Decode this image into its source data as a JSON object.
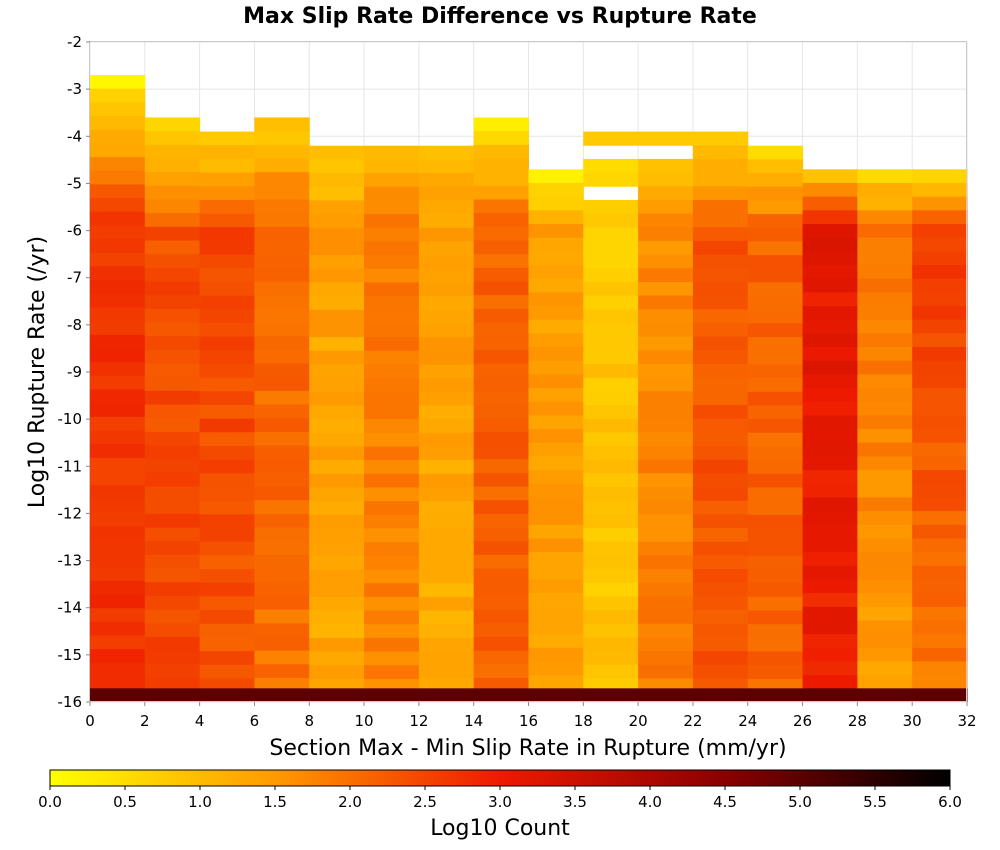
{
  "chart_data": {
    "type": "heatmap",
    "title": "Max Slip Rate Difference vs Rupture Rate",
    "xlabel": "Section Max - Min Slip Rate in Rupture (mm/yr)",
    "ylabel": "Log10 Rupture Rate (/yr)",
    "xlim": [
      0,
      32
    ],
    "ylim": [
      -16,
      -2
    ],
    "x_ticks": [
      "0",
      "2",
      "4",
      "6",
      "8",
      "10",
      "12",
      "14",
      "16",
      "18",
      "20",
      "22",
      "24",
      "26",
      "28",
      "30",
      "32"
    ],
    "y_ticks": [
      "-2",
      "-3",
      "-4",
      "-5",
      "-6",
      "-7",
      "-8",
      "-9",
      "-10",
      "-11",
      "-12",
      "-13",
      "-14",
      "-15",
      "-16"
    ],
    "grid": true,
    "colorbar": {
      "label": "Log10 Count",
      "range": [
        0,
        6
      ],
      "ticks": [
        "0.0",
        "0.5",
        "1.0",
        "1.5",
        "2.0",
        "2.5",
        "3.0",
        "3.5",
        "4.0",
        "4.5",
        "5.0",
        "5.5",
        "6.0"
      ],
      "colors": [
        "#ffff00",
        "#ff9a00",
        "#ee1a00",
        "#8a0000",
        "#000000"
      ],
      "stops": [
        0,
        1.5,
        3.0,
        4.5,
        6.0
      ]
    },
    "x_bins": [
      [
        0,
        2
      ],
      [
        2,
        4
      ],
      [
        4,
        6
      ],
      [
        6,
        8
      ],
      [
        8,
        10
      ],
      [
        10,
        12
      ],
      [
        12,
        14
      ],
      [
        14,
        16
      ],
      [
        16,
        18
      ],
      [
        18,
        20
      ],
      [
        20,
        22
      ],
      [
        22,
        24
      ],
      [
        24,
        26
      ],
      [
        26,
        28
      ],
      [
        28,
        30
      ],
      [
        30,
        32
      ]
    ],
    "columns": [
      {
        "x": [
          0,
          2
        ],
        "top": -2.7,
        "top_value": 0.2,
        "high_value": 2.75,
        "low_value": 2.7,
        "bottom_value": 5.0
      },
      {
        "x": [
          2,
          4
        ],
        "top": -3.6,
        "top_value": 0.3,
        "high_value": 2.4,
        "low_value": 2.45,
        "bottom_value": 5.0
      },
      {
        "x": [
          4,
          6
        ],
        "top": -3.9,
        "top_value": 0.5,
        "high_value": 2.55,
        "low_value": 2.3,
        "bottom_value": 5.0
      },
      {
        "x": [
          6,
          8
        ],
        "top": -3.6,
        "top_value": 0.8,
        "high_value": 2.1,
        "low_value": 2.0,
        "bottom_value": 5.0
      },
      {
        "x": [
          8,
          10
        ],
        "top": -4.2,
        "top_value": 0.9,
        "high_value": 1.4,
        "low_value": 1.3,
        "bottom_value": 5.0
      },
      {
        "x": [
          10,
          12
        ],
        "top": -4.2,
        "top_value": 1.0,
        "high_value": 1.9,
        "low_value": 1.75,
        "bottom_value": 5.0
      },
      {
        "x": [
          12,
          14
        ],
        "top": -4.2,
        "top_value": 1.0,
        "high_value": 1.5,
        "low_value": 1.2,
        "bottom_value": 5.0
      },
      {
        "x": [
          14,
          16
        ],
        "top": -3.6,
        "top_value": 0.3,
        "high_value": 2.15,
        "low_value": 2.2,
        "bottom_value": 5.0
      },
      {
        "x": [
          16,
          18
        ],
        "top": -4.7,
        "top_value": 0.3,
        "high_value": 1.4,
        "low_value": 1.45,
        "bottom_value": 5.0
      },
      {
        "x": [
          18,
          20
        ],
        "top": -3.9,
        "top_value": 0.6,
        "high_value": 0.8,
        "low_value": 0.9,
        "bottom_value": 5.0
      },
      {
        "x": [
          20,
          22
        ],
        "top": -3.9,
        "top_value": 0.6,
        "high_value": 1.7,
        "low_value": 1.8,
        "bottom_value": 5.0
      },
      {
        "x": [
          22,
          24
        ],
        "top": -3.9,
        "top_value": 0.6,
        "high_value": 2.3,
        "low_value": 2.35,
        "bottom_value": 5.0
      },
      {
        "x": [
          24,
          26
        ],
        "top": -4.2,
        "top_value": 0.4,
        "high_value": 2.2,
        "low_value": 2.1,
        "bottom_value": 5.0
      },
      {
        "x": [
          26,
          28
        ],
        "top": -4.7,
        "top_value": 0.7,
        "high_value": 3.1,
        "low_value": 2.95,
        "bottom_value": 5.0
      },
      {
        "x": [
          28,
          30
        ],
        "top": -4.7,
        "top_value": 0.5,
        "high_value": 2.0,
        "low_value": 1.45,
        "bottom_value": 5.0
      },
      {
        "x": [
          30,
          32
        ],
        "top": -4.7,
        "top_value": 0.6,
        "high_value": 2.6,
        "low_value": 1.95,
        "bottom_value": 5.0
      }
    ],
    "gaps": [
      {
        "x": [
          18,
          20
        ],
        "y": [
          -5.3,
          -5.0
        ]
      },
      {
        "x": [
          20,
          22
        ],
        "y": [
          -4.2,
          -4.4
        ]
      },
      {
        "x": [
          18,
          20
        ],
        "y": [
          -4.2,
          -4.4
        ]
      }
    ]
  }
}
